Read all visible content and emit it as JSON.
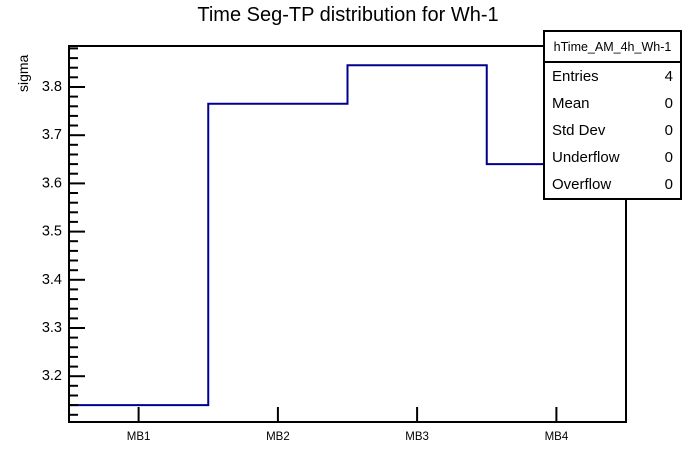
{
  "window": {
    "background": "#ffffff"
  },
  "chart_data": {
    "type": "bar",
    "style": "step-outline-histogram",
    "title": "Time Seg-TP distribution for Wh-1",
    "xlabel": "",
    "ylabel": "sigma",
    "categories": [
      "MB1",
      "MB2",
      "MB3",
      "MB4"
    ],
    "values": [
      3.14,
      3.765,
      3.845,
      3.64
    ],
    "ylim": [
      3.105,
      3.885
    ],
    "y_major_ticks": [
      3.2,
      3.3,
      3.4,
      3.5,
      3.6,
      3.7,
      3.8
    ],
    "y_tick_labels": [
      "3.2",
      "3.3",
      "3.4",
      "3.5",
      "3.6",
      "3.7",
      "3.8"
    ],
    "y_minor_step": 0.02,
    "grid": false,
    "legend": false,
    "line_color": "#00008c",
    "axis_color": "#000000",
    "text_color": "#000000"
  },
  "stats_box": {
    "header": "hTime_AM_4h_Wh-1",
    "rows": [
      {
        "label": "Entries",
        "value": "4"
      },
      {
        "label": "Mean",
        "value": "0"
      },
      {
        "label": "Std Dev",
        "value": "0"
      },
      {
        "label": "Underflow",
        "value": "0"
      },
      {
        "label": "Overflow",
        "value": "0"
      }
    ]
  }
}
